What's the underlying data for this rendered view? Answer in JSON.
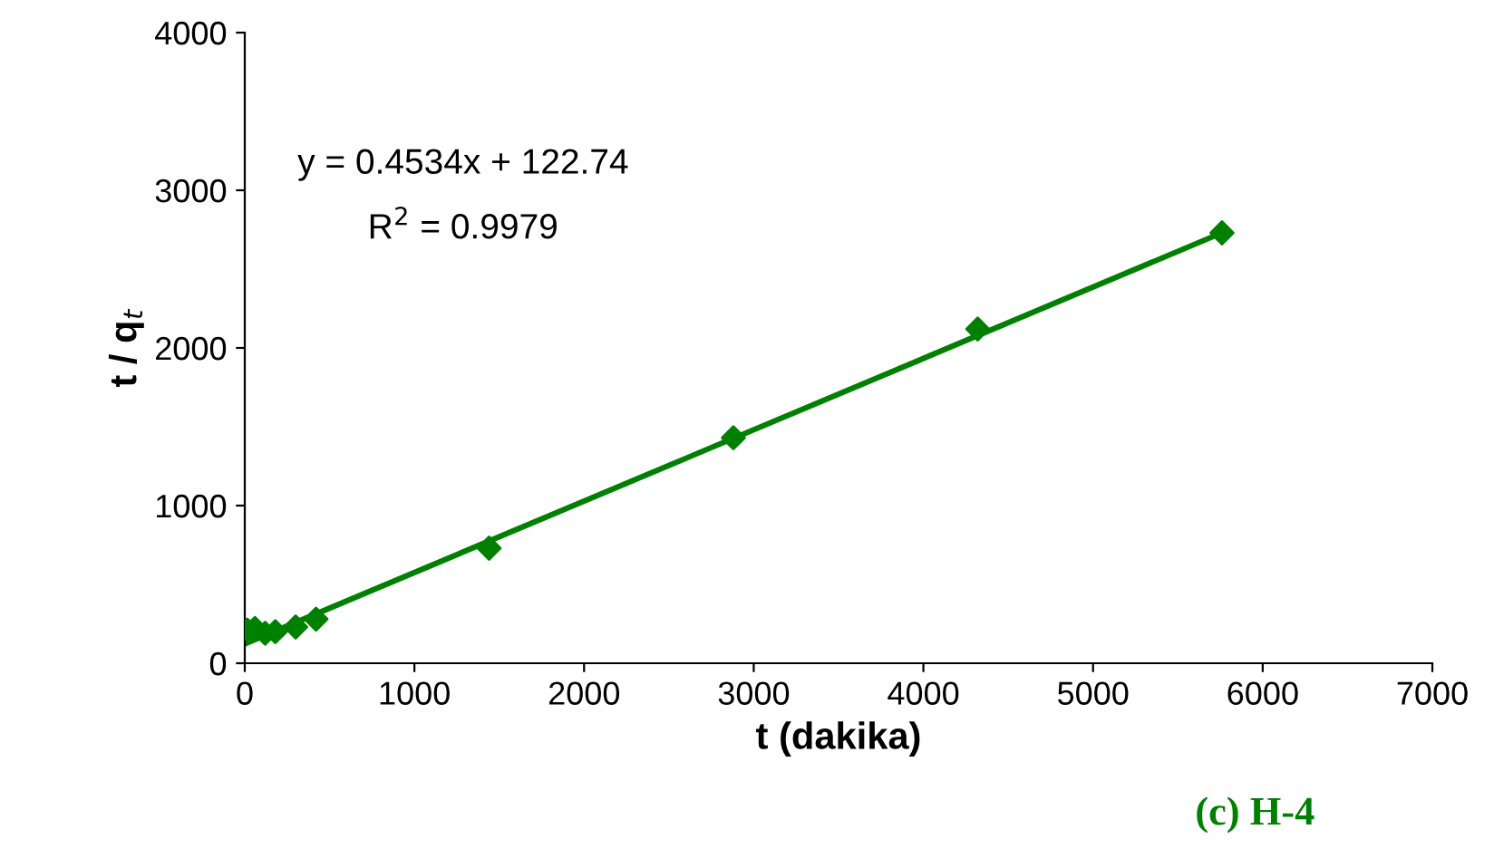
{
  "chart_data": {
    "type": "scatter",
    "xlabel": "t (dakika)",
    "ylabel": "t / q$_{t}$",
    "series": [
      {
        "color": "#008000",
        "marker": "diamond",
        "x": [
          15,
          60,
          120,
          180,
          300,
          420,
          1440,
          2880,
          4320,
          5760
        ],
        "values": [
          210,
          220,
          190,
          200,
          230,
          280,
          730,
          1430,
          2120,
          2730
        ]
      },
      {
        "type": "line",
        "color": "#008000",
        "marker": "none",
        "line_style": "solid",
        "x": [
          15,
          5760
        ],
        "values": [
          130,
          2730
        ]
      }
    ],
    "xlim": [
      0,
      7000
    ],
    "xticks": [
      0,
      1000,
      2000,
      3000,
      4000,
      5000,
      6000,
      7000
    ],
    "ylim": [
      0,
      4000
    ],
    "yticks": [
      0,
      1000,
      2000,
      3000,
      4000
    ],
    "grid": false,
    "legend": false,
    "annotations": [
      "y = 0.4534x + 122.74",
      "R$^{2}$ = 0.9979",
      "(c) H-4"
    ]
  }
}
